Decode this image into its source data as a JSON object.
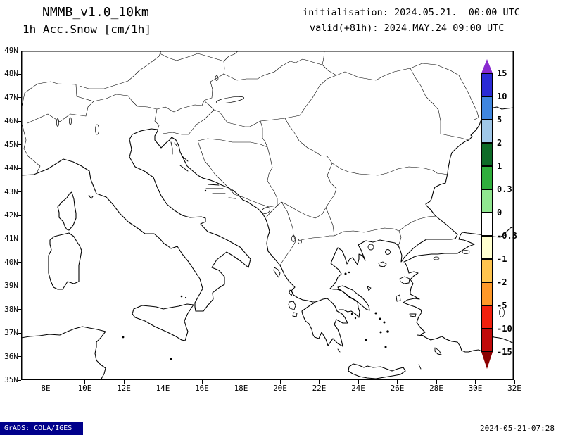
{
  "header": {
    "model": "NMMB_v1.0_10km",
    "product": "1h Acc.Snow [cm/1h]",
    "init_line": "initialisation: 2024.05.21.  00:00 UTC",
    "valid_line": "valid(+81h): 2024.MAY.24 09:00 UTC"
  },
  "map_axes": {
    "lat_labels": [
      "49N",
      "48N",
      "47N",
      "46N",
      "45N",
      "44N",
      "43N",
      "42N",
      "41N",
      "40N",
      "39N",
      "38N",
      "37N",
      "36N",
      "35N"
    ],
    "lon_labels": [
      "8E",
      "10E",
      "12E",
      "14E",
      "16E",
      "18E",
      "20E",
      "22E",
      "24E",
      "26E",
      "28E",
      "30E",
      "32E"
    ]
  },
  "colorbar": {
    "levels": [
      "15",
      "10",
      "5",
      "2",
      "1",
      "0.3",
      "0",
      "-0.3",
      "-1",
      "-2",
      "-5",
      "-10",
      "-15"
    ],
    "segment_colors": [
      "#2b2bd6",
      "#3f86e0",
      "#9fc7e8",
      "#0e6b28",
      "#2fae3c",
      "#90e690",
      "#ffffff",
      "#ffffcf",
      "#fec44f",
      "#fe9829",
      "#f2200d",
      "#c00a0a"
    ],
    "arrow_top_color": "#8a2bd0",
    "arrow_bottom_color": "#8b0000"
  },
  "footer": {
    "grads_credit": "GrADS: COLA/IGES",
    "timestamp": "2024-05-21-07:28"
  }
}
